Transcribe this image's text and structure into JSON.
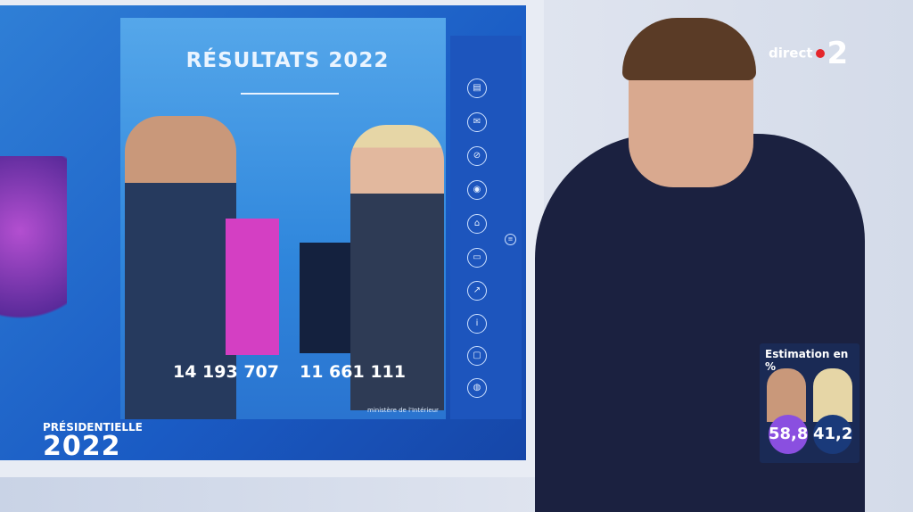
{
  "screen": {
    "title": "RÉSULTATS 2022",
    "results": [
      {
        "candidate_votes": "14 193 707",
        "bar_color": "#d43fc3",
        "value": 14193707
      },
      {
        "candidate_votes": "11 661 111",
        "bar_color": "#14213e",
        "value": 11661111
      }
    ],
    "source": "ministère de l'Intérieur",
    "sidebar_icons": [
      "results-icon",
      "mail-icon",
      "no-vote-icon",
      "broadcast-icon",
      "building-icon",
      "podium-icon",
      "trend-icon",
      "info-icon",
      "folder-icon",
      "globe-icon"
    ],
    "branding": {
      "line1": "PRÉSIDENTIELLE",
      "line2": "2022"
    }
  },
  "channel_logo": {
    "text": "direct",
    "number": "2"
  },
  "estimate": {
    "title": "Estimation en %",
    "values": [
      {
        "value": "58,8",
        "color": "#8a4fe0"
      },
      {
        "value": "41,2",
        "color": "#1a3a7a"
      }
    ]
  }
}
